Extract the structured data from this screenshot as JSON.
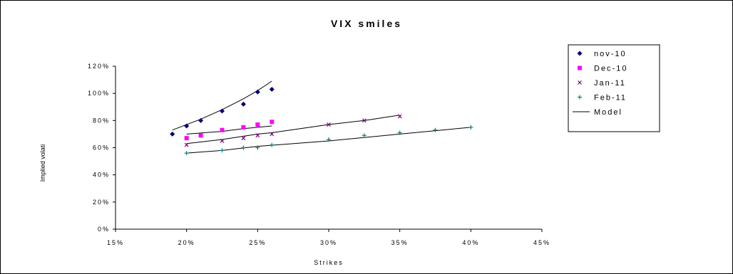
{
  "chart_data": {
    "type": "scatter",
    "title": "VIX smiles",
    "xlabel": "Strikes",
    "ylabel": "Implied volati",
    "xlim": [
      15,
      45
    ],
    "ylim": [
      0,
      120
    ],
    "x_ticks": [
      "15%",
      "20%",
      "25%",
      "30%",
      "35%",
      "40%",
      "45%"
    ],
    "y_ticks": [
      "0%",
      "20%",
      "40%",
      "60%",
      "80%",
      "100%",
      "120%"
    ],
    "grid": false,
    "legend_position": "right",
    "series": [
      {
        "name": "nov-10",
        "marker": "diamond",
        "color": "#00007f",
        "points": [
          [
            19,
            70
          ],
          [
            20,
            76
          ],
          [
            21,
            80
          ],
          [
            22.5,
            87
          ],
          [
            24,
            92
          ],
          [
            25,
            101
          ],
          [
            26,
            103
          ]
        ]
      },
      {
        "name": "Dec-10",
        "marker": "square",
        "color": "#ff00ff",
        "points": [
          [
            20,
            67
          ],
          [
            21,
            69
          ],
          [
            22.5,
            73
          ],
          [
            24,
            75
          ],
          [
            25,
            77
          ],
          [
            26,
            79
          ]
        ]
      },
      {
        "name": "Jan-11",
        "marker": "x",
        "color": "#7f007f",
        "points": [
          [
            20,
            62
          ],
          [
            22.5,
            65
          ],
          [
            24,
            67
          ],
          [
            25,
            69
          ],
          [
            26,
            70
          ],
          [
            30,
            77
          ],
          [
            32.5,
            80
          ],
          [
            35,
            83
          ]
        ]
      },
      {
        "name": "Feb-11",
        "marker": "plus",
        "color": "#008080",
        "points": [
          [
            20,
            56
          ],
          [
            22.5,
            58
          ],
          [
            24,
            60
          ],
          [
            25,
            60
          ],
          [
            26,
            62
          ],
          [
            30,
            66
          ],
          [
            32.5,
            69
          ],
          [
            35,
            71
          ],
          [
            37.5,
            73
          ],
          [
            40,
            75
          ]
        ]
      }
    ],
    "model": {
      "name": "Model",
      "color": "#000000",
      "curves": [
        [
          [
            19,
            73
          ],
          [
            20,
            77
          ],
          [
            21,
            81
          ],
          [
            22.5,
            88
          ],
          [
            24,
            96
          ],
          [
            25,
            102
          ],
          [
            26,
            109
          ]
        ],
        [
          [
            20,
            70
          ],
          [
            22.5,
            72
          ],
          [
            24,
            74
          ],
          [
            26,
            76
          ]
        ],
        [
          [
            20,
            63
          ],
          [
            22.5,
            66
          ],
          [
            25,
            70
          ],
          [
            26,
            71
          ],
          [
            28,
            74
          ],
          [
            30,
            77
          ],
          [
            32.5,
            80
          ],
          [
            35,
            84
          ]
        ],
        [
          [
            20,
            56
          ],
          [
            22.5,
            58
          ],
          [
            25,
            61
          ],
          [
            30,
            65
          ],
          [
            35,
            70
          ],
          [
            40,
            75
          ]
        ]
      ]
    }
  }
}
